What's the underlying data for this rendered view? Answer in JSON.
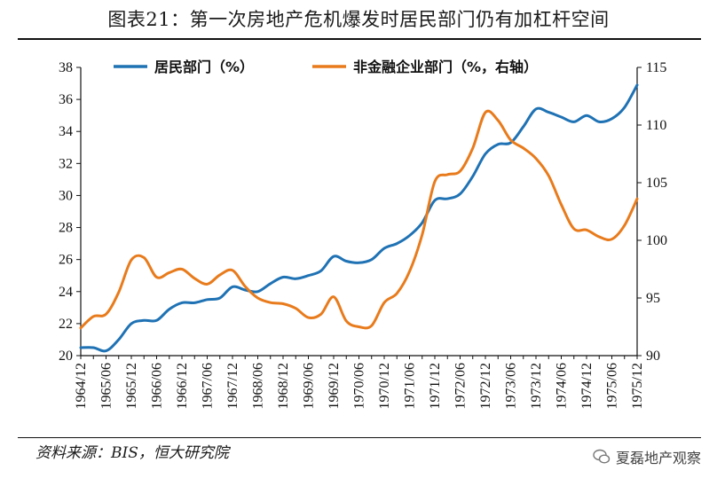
{
  "header": {
    "title": "图表21：第一次房地产危机爆发时居民部门仍有加杠杆空间"
  },
  "footer": {
    "source": "资料来源：BIS，恒大研究院",
    "watermark": "夏磊地产观察"
  },
  "colors": {
    "series1": "#1f72b4",
    "series2": "#e87b1c",
    "axis": "#111111"
  },
  "chart_data": {
    "type": "line",
    "title": "",
    "xlabel": "",
    "ylabel": "",
    "y_left": {
      "ylim": [
        20,
        38
      ],
      "ticks": [
        "20",
        "22",
        "24",
        "26",
        "28",
        "30",
        "32",
        "34",
        "36",
        "38"
      ]
    },
    "y_right": {
      "ylim": [
        90,
        115
      ],
      "ticks": [
        "90",
        "95",
        "100",
        "105",
        "110",
        "115"
      ]
    },
    "grid": false,
    "legend": "top",
    "x_labels": [
      "1964/12",
      "1965/06",
      "1965/12",
      "1966/06",
      "1966/12",
      "1967/06",
      "1967/12",
      "1968/06",
      "1968/12",
      "1969/06",
      "1969/12",
      "1970/06",
      "1970/12",
      "1971/06",
      "1971/12",
      "1972/06",
      "1972/12",
      "1973/06",
      "1973/12",
      "1974/06",
      "1974/12",
      "1975/06",
      "1975/12"
    ],
    "x_quarters": [
      "1964Q4",
      "1965Q1",
      "1965Q2",
      "1965Q3",
      "1965Q4",
      "1966Q1",
      "1966Q2",
      "1966Q3",
      "1966Q4",
      "1967Q1",
      "1967Q2",
      "1967Q3",
      "1967Q4",
      "1968Q1",
      "1968Q2",
      "1968Q3",
      "1968Q4",
      "1969Q1",
      "1969Q2",
      "1969Q3",
      "1969Q4",
      "1970Q1",
      "1970Q2",
      "1970Q3",
      "1970Q4",
      "1971Q1",
      "1971Q2",
      "1971Q3",
      "1971Q4",
      "1972Q1",
      "1972Q2",
      "1972Q3",
      "1972Q4",
      "1973Q1",
      "1973Q2",
      "1973Q3",
      "1973Q4",
      "1974Q1",
      "1974Q2",
      "1974Q3",
      "1974Q4",
      "1975Q1",
      "1975Q2",
      "1975Q3",
      "1975Q4"
    ],
    "series": [
      {
        "name": "居民部门（%）",
        "axis": "left",
        "values": [
          20.5,
          20.5,
          20.3,
          21.0,
          22.0,
          22.2,
          22.2,
          22.9,
          23.3,
          23.3,
          23.5,
          23.6,
          24.3,
          24.1,
          24.0,
          24.5,
          24.9,
          24.8,
          25.0,
          25.3,
          26.2,
          25.9,
          25.8,
          26.0,
          26.7,
          27.0,
          27.5,
          28.3,
          29.7,
          29.8,
          30.1,
          31.2,
          32.6,
          33.2,
          33.3,
          34.3,
          35.4,
          35.2,
          34.9,
          34.6,
          35.0,
          34.6,
          34.8,
          35.5,
          36.9
        ]
      },
      {
        "name": "非金融企业部门（%，右轴）",
        "axis": "right",
        "values": [
          92.4,
          93.4,
          93.6,
          95.5,
          98.3,
          98.5,
          96.8,
          97.2,
          97.5,
          96.7,
          96.2,
          97.0,
          97.4,
          96.0,
          95.0,
          94.6,
          94.5,
          94.1,
          93.3,
          93.6,
          95.1,
          93.0,
          92.5,
          92.6,
          94.6,
          95.4,
          97.3,
          100.5,
          105.1,
          105.7,
          106.0,
          108.0,
          111.1,
          110.4,
          108.7,
          108.0,
          107.1,
          105.6,
          103.1,
          101.0,
          100.9,
          100.3,
          100.1,
          101.3,
          103.6
        ]
      }
    ]
  }
}
